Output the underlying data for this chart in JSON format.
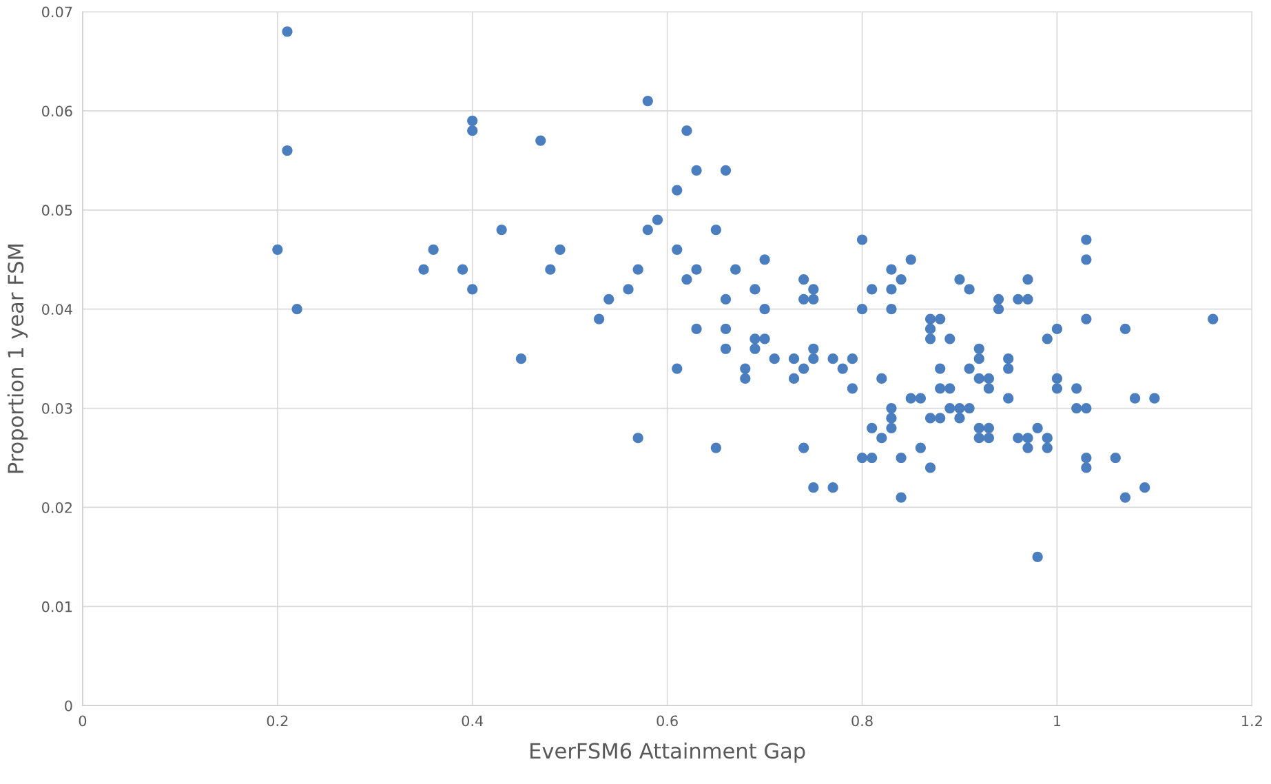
{
  "chart_data": {
    "type": "scatter",
    "xlabel": "EverFSM6 Attainment Gap",
    "ylabel": "Proportion 1 year FSM",
    "xlim": [
      0,
      1.2
    ],
    "ylim": [
      0,
      0.07
    ],
    "xticks": [
      0,
      0.2,
      0.4,
      0.6,
      0.8,
      1,
      1.2
    ],
    "yticks": [
      0,
      0.01,
      0.02,
      0.03,
      0.04,
      0.05,
      0.06,
      0.07
    ],
    "grid": true,
    "marker": "circle",
    "series": [
      {
        "color": "#4a7ebf",
        "x": [
          0.21,
          0.21,
          0.2,
          0.22,
          0.35,
          0.36,
          0.39,
          0.4,
          0.4,
          0.4,
          0.43,
          0.45,
          0.47,
          0.48,
          0.49,
          0.53,
          0.54,
          0.56,
          0.57,
          0.57,
          0.58,
          0.58,
          0.59,
          0.61,
          0.61,
          0.61,
          0.62,
          0.62,
          0.63,
          0.63,
          0.63,
          0.65,
          0.65,
          0.66,
          0.66,
          0.66,
          0.66,
          0.67,
          0.68,
          0.68,
          0.69,
          0.69,
          0.69,
          0.7,
          0.7,
          0.7,
          0.71,
          0.73,
          0.73,
          0.74,
          0.74,
          0.74,
          0.74,
          0.75,
          0.75,
          0.75,
          0.75,
          0.75,
          0.77,
          0.77,
          0.78,
          0.79,
          0.79,
          0.8,
          0.8,
          0.8,
          0.81,
          0.81,
          0.81,
          0.82,
          0.82,
          0.83,
          0.83,
          0.83,
          0.83,
          0.83,
          0.83,
          0.84,
          0.84,
          0.84,
          0.85,
          0.85,
          0.86,
          0.86,
          0.87,
          0.87,
          0.87,
          0.87,
          0.87,
          0.88,
          0.88,
          0.88,
          0.88,
          0.89,
          0.89,
          0.89,
          0.9,
          0.9,
          0.9,
          0.91,
          0.91,
          0.91,
          0.92,
          0.92,
          0.92,
          0.92,
          0.92,
          0.93,
          0.93,
          0.93,
          0.93,
          0.94,
          0.94,
          0.95,
          0.95,
          0.95,
          0.96,
          0.96,
          0.97,
          0.97,
          0.97,
          0.97,
          0.98,
          0.98,
          0.99,
          0.99,
          0.99,
          1.0,
          1.0,
          1.0,
          1.02,
          1.02,
          1.03,
          1.03,
          1.03,
          1.03,
          1.03,
          1.03,
          1.06,
          1.07,
          1.07,
          1.08,
          1.09,
          1.1,
          1.16
        ],
        "values": [
          0.068,
          0.056,
          0.046,
          0.04,
          0.044,
          0.046,
          0.044,
          0.059,
          0.058,
          0.042,
          0.048,
          0.035,
          0.057,
          0.044,
          0.046,
          0.039,
          0.041,
          0.042,
          0.044,
          0.027,
          0.061,
          0.048,
          0.049,
          0.052,
          0.046,
          0.034,
          0.058,
          0.043,
          0.054,
          0.044,
          0.038,
          0.048,
          0.026,
          0.054,
          0.041,
          0.038,
          0.036,
          0.044,
          0.034,
          0.033,
          0.042,
          0.037,
          0.036,
          0.045,
          0.04,
          0.037,
          0.035,
          0.035,
          0.033,
          0.043,
          0.041,
          0.034,
          0.026,
          0.042,
          0.041,
          0.036,
          0.035,
          0.022,
          0.035,
          0.022,
          0.034,
          0.035,
          0.032,
          0.047,
          0.04,
          0.025,
          0.042,
          0.028,
          0.025,
          0.033,
          0.027,
          0.044,
          0.042,
          0.04,
          0.03,
          0.029,
          0.028,
          0.043,
          0.025,
          0.021,
          0.045,
          0.031,
          0.031,
          0.026,
          0.039,
          0.038,
          0.037,
          0.029,
          0.024,
          0.039,
          0.034,
          0.032,
          0.029,
          0.037,
          0.032,
          0.03,
          0.043,
          0.03,
          0.029,
          0.042,
          0.034,
          0.03,
          0.036,
          0.035,
          0.033,
          0.028,
          0.027,
          0.033,
          0.032,
          0.028,
          0.027,
          0.041,
          0.04,
          0.035,
          0.034,
          0.031,
          0.041,
          0.027,
          0.043,
          0.041,
          0.027,
          0.026,
          0.028,
          0.015,
          0.037,
          0.027,
          0.026,
          0.038,
          0.033,
          0.032,
          0.032,
          0.03,
          0.047,
          0.045,
          0.039,
          0.03,
          0.025,
          0.024,
          0.025,
          0.038,
          0.021,
          0.031,
          0.022,
          0.031,
          0.039
        ]
      }
    ]
  }
}
